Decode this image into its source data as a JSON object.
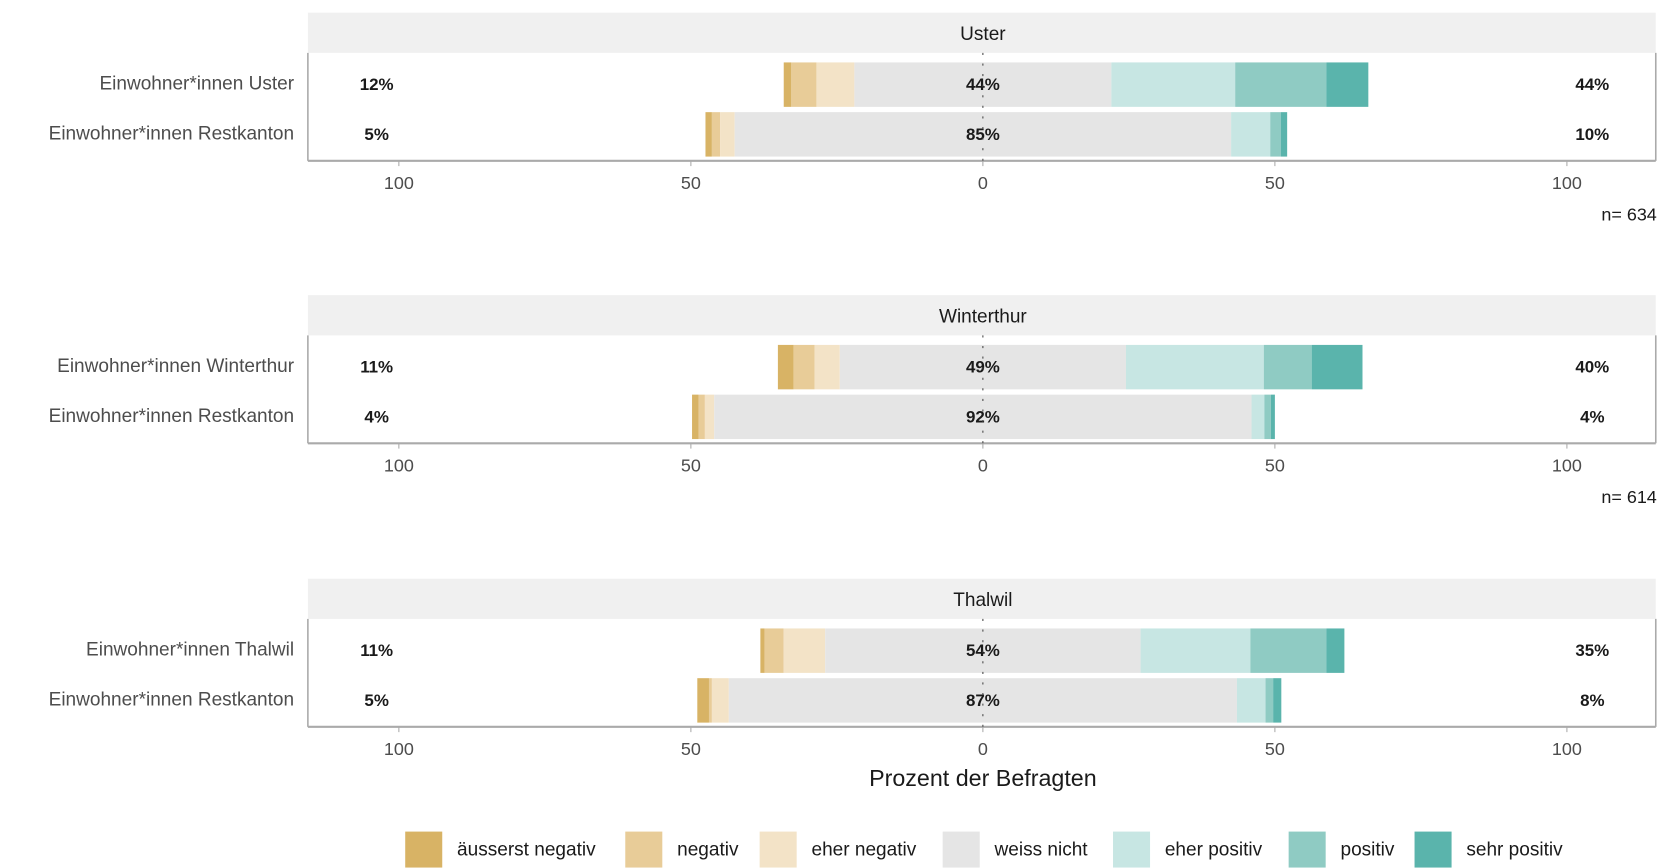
{
  "chart_data": [
    {
      "type": "diverging-bar",
      "title": "Uster",
      "categories": [
        "Einwohner*innen Uster",
        "Einwohner*innen Restkanton"
      ],
      "series": [
        {
          "name": "äusserst negativ",
          "color": "#d8b365",
          "values": [
            1.3,
            1.1
          ]
        },
        {
          "name": "negativ",
          "color": "#e8cc98",
          "values": [
            4.3,
            1.4
          ]
        },
        {
          "name": "eher negativ",
          "color": "#f3e3c7",
          "values": [
            6.5,
            2.5
          ]
        },
        {
          "name": "weiss nicht",
          "color": "#e5e5e5",
          "values": [
            44,
            85
          ]
        },
        {
          "name": "eher positiv",
          "color": "#c7e6e3",
          "values": [
            21.2,
            6.7
          ]
        },
        {
          "name": "positiv",
          "color": "#8fcbc3",
          "values": [
            15.6,
            1.8
          ]
        },
        {
          "name": "sehr positiv",
          "color": "#5ab4ac",
          "values": [
            7.2,
            1.1
          ]
        }
      ],
      "summaries": [
        {
          "values": [
            12,
            44,
            44
          ],
          "value_labels": [
            "12%",
            "44%",
            "44%"
          ]
        },
        {
          "values": [
            5,
            85,
            10
          ],
          "value_labels": [
            "5%",
            "85%",
            "10%"
          ]
        }
      ],
      "xlim": [
        -115,
        115
      ],
      "xticks": [
        {
          "value": -100,
          "label": "100"
        },
        {
          "value": -50,
          "label": "50"
        },
        0,
        50,
        100
      ],
      "note": "n= 634"
    },
    {
      "type": "diverging-bar",
      "title": "Winterthur",
      "categories": [
        "Einwohner*innen Winterthur",
        "Einwohner*innen Restkanton"
      ],
      "series": [
        {
          "name": "äusserst negativ",
          "color": "#d8b365",
          "values": [
            2.7,
            1.1
          ]
        },
        {
          "name": "negativ",
          "color": "#e8cc98",
          "values": [
            3.6,
            1.1
          ]
        },
        {
          "name": "eher negativ",
          "color": "#f3e3c7",
          "values": [
            4.3,
            1.6
          ]
        },
        {
          "name": "weiss nicht",
          "color": "#e5e5e5",
          "values": [
            49,
            92
          ]
        },
        {
          "name": "eher positiv",
          "color": "#c7e6e3",
          "values": [
            23.6,
            2.2
          ]
        },
        {
          "name": "positiv",
          "color": "#8fcbc3",
          "values": [
            8.2,
            1.1
          ]
        },
        {
          "name": "sehr positiv",
          "color": "#5ab4ac",
          "values": [
            8.7,
            0.7
          ]
        }
      ],
      "summaries": [
        {
          "values": [
            11,
            49,
            40
          ],
          "value_labels": [
            "11%",
            "49%",
            "40%"
          ]
        },
        {
          "values": [
            4,
            92,
            4
          ],
          "value_labels": [
            "4%",
            "92%",
            "4%"
          ]
        }
      ],
      "xlim": [
        -115,
        115
      ],
      "xticks": [
        {
          "value": -100,
          "label": "100"
        },
        {
          "value": -50,
          "label": "50"
        },
        0,
        50,
        100
      ],
      "note": "n= 614"
    },
    {
      "type": "diverging-bar",
      "title": "Thalwil",
      "categories": [
        "Einwohner*innen Thalwil",
        "Einwohner*innen Restkanton"
      ],
      "series": [
        {
          "name": "äusserst negativ",
          "color": "#d8b365",
          "values": [
            0.7,
            2
          ]
        },
        {
          "name": "negativ",
          "color": "#e8cc98",
          "values": [
            3.3,
            0.5
          ]
        },
        {
          "name": "eher negativ",
          "color": "#f3e3c7",
          "values": [
            7.1,
            2.9
          ]
        },
        {
          "name": "weiss nicht",
          "color": "#e5e5e5",
          "values": [
            54,
            87
          ]
        },
        {
          "name": "eher positiv",
          "color": "#c7e6e3",
          "values": [
            18.8,
            4.9
          ]
        },
        {
          "name": "positiv",
          "color": "#8fcbc3",
          "values": [
            13,
            1.3
          ]
        },
        {
          "name": "sehr positiv",
          "color": "#5ab4ac",
          "values": [
            3.1,
            1.4
          ]
        }
      ],
      "summaries": [
        {
          "values": [
            11,
            54,
            35
          ],
          "value_labels": [
            "11%",
            "54%",
            "35%"
          ]
        },
        {
          "values": [
            5,
            87,
            8
          ],
          "value_labels": [
            "5%",
            "87%",
            "8%"
          ]
        }
      ],
      "xlim": [
        -115,
        115
      ],
      "xticks": [
        {
          "value": -100,
          "label": "100"
        },
        {
          "value": -50,
          "label": "50"
        },
        0,
        50,
        100
      ],
      "xlabel": "Prozent der Befragten"
    }
  ]
}
